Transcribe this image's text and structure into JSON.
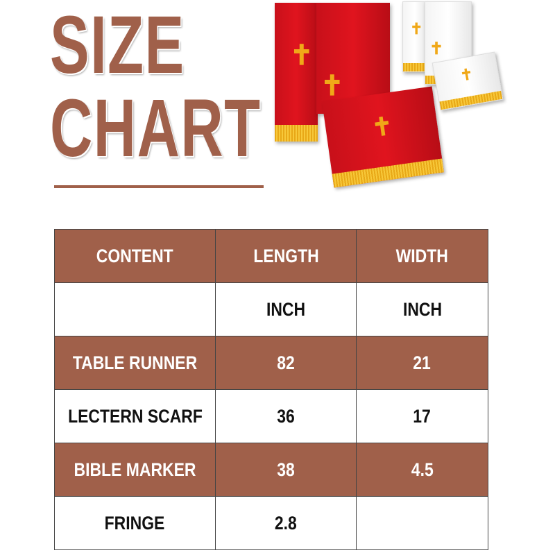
{
  "title": {
    "line1": "SIZE",
    "line2": "CHART"
  },
  "colors": {
    "accent": "#a0604a",
    "cloth_red": "#d8121c",
    "fringe_gold": "#f0b428"
  },
  "product_image": {
    "icon": "cross-icon",
    "cross_glyph": "✝"
  },
  "table": {
    "headers": [
      "CONTENT",
      "LENGTH",
      "WIDTH"
    ],
    "rows": [
      [
        "",
        "INCH",
        "INCH"
      ],
      [
        "TABLE RUNNER",
        "82",
        "21"
      ],
      [
        "LECTERN SCARF",
        "36",
        "17"
      ],
      [
        "BIBLE MARKER",
        "38",
        "4.5"
      ],
      [
        "FRINGE",
        "2.8",
        ""
      ]
    ]
  }
}
